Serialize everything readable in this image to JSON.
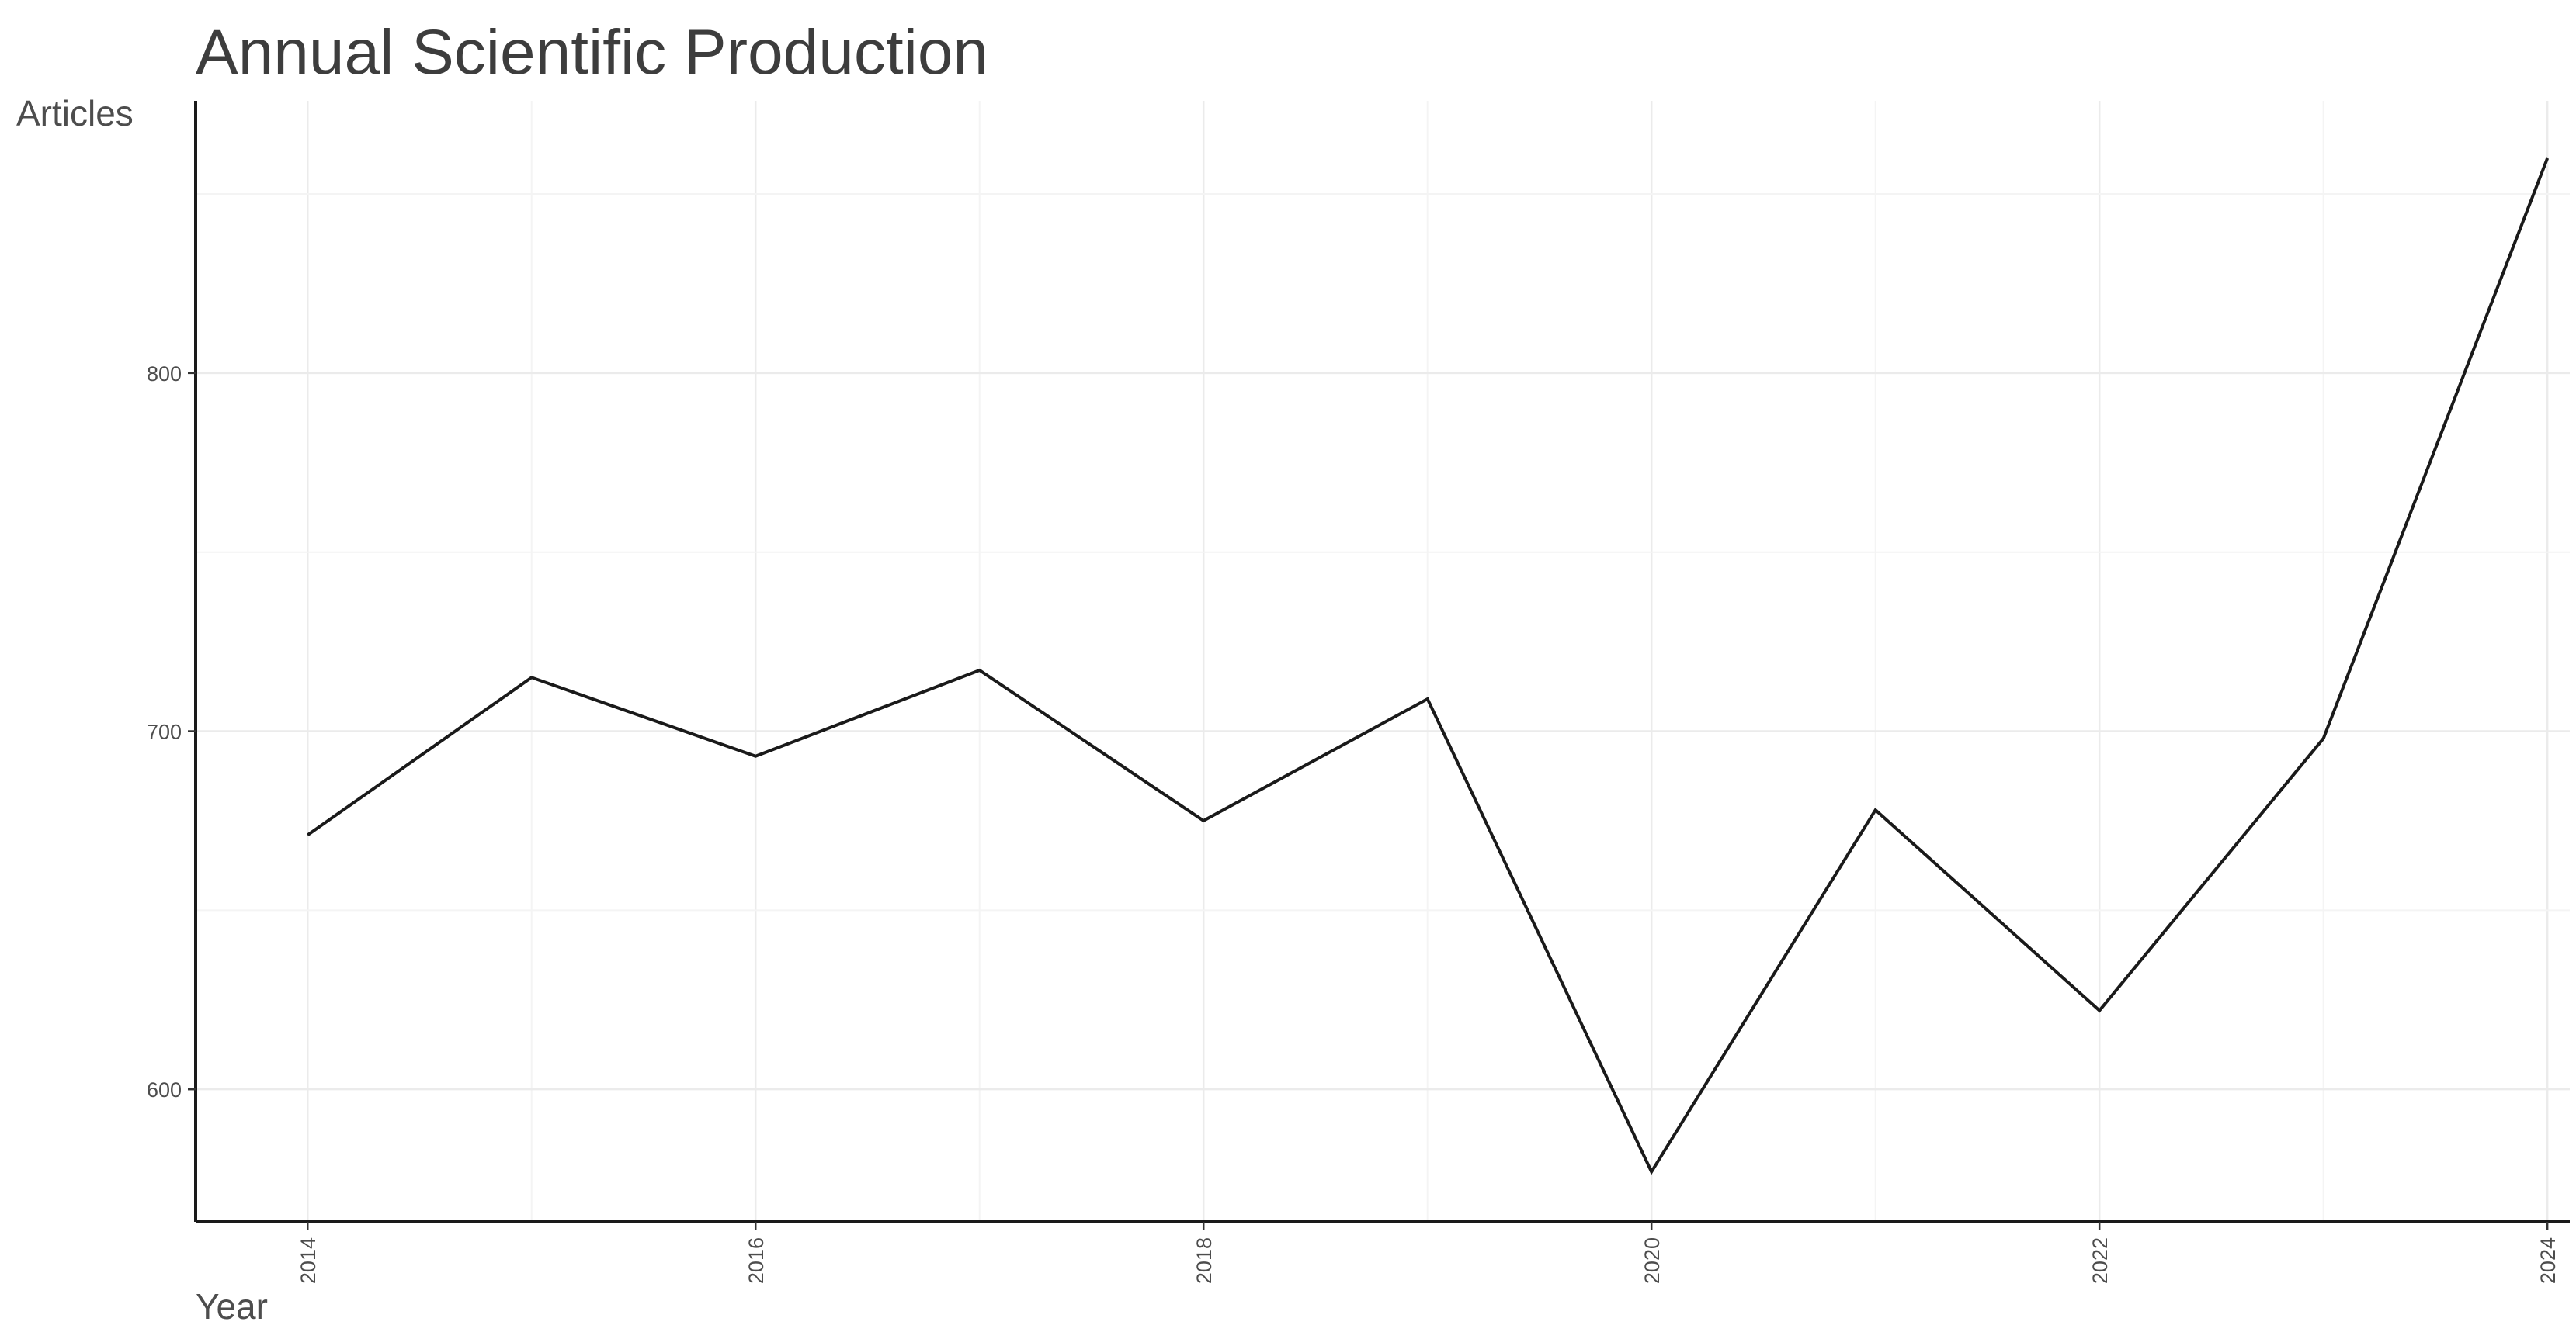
{
  "chart_data": {
    "type": "line",
    "title": "Annual Scientific Production",
    "xlabel": "Year",
    "ylabel": "Articles",
    "x": [
      2014,
      2015,
      2016,
      2017,
      2018,
      2019,
      2020,
      2021,
      2022,
      2023,
      2024
    ],
    "series": [
      {
        "values": [
          671,
          715,
          693,
          717,
          675,
          709,
          577,
          678,
          622,
          698,
          860
        ]
      }
    ],
    "xlim": [
      2013.5,
      2024.1
    ],
    "ylim": [
      563,
      876
    ],
    "x_ticks": [
      2014,
      2016,
      2018,
      2020,
      2022,
      2024
    ],
    "y_ticks": [
      600,
      700,
      800
    ],
    "x_tick_labels": [
      "2014",
      "2016",
      "2018",
      "2020",
      "2022",
      "2024"
    ],
    "y_tick_labels": [
      "600",
      "700",
      "800"
    ],
    "grid": true,
    "line_color": "#1a1a1a",
    "grid_color": "#ebebeb"
  }
}
